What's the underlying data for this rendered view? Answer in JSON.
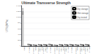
{
  "chart_data": {
    "type": "bar",
    "title": "Ultimate Transverse Strength",
    "ylabel": "UTS (MPa)",
    "categories": [
      "OBC",
      "PTOBC",
      "PTOBC+\nAgBz",
      "PTOBC+\nAgBz+\nBPO",
      "PTOBC+\nAgBz+\nP-TIDE",
      "UTOBC",
      "UTOBC+\nAgBz",
      "UTOBC+\nAgBz+\nBPO",
      "UTOBC+\nAgBz+\nP-TIDE",
      "CTOBC",
      "CTOBC+\nAgBz",
      "CTOBC+\nAgBz+\nBPO",
      "CTOBC+\nAgBz+\nP-TIDE"
    ],
    "series": [
      {
        "name": "Dry storage",
        "color": "#d9d9d9",
        "values": [
          1200,
          65,
          45,
          55,
          55,
          65,
          38,
          55,
          55,
          58,
          50,
          58,
          58
        ],
        "errors": [
          100,
          8,
          5,
          6,
          6,
          8,
          4,
          6,
          6,
          7,
          5,
          7,
          7
        ]
      },
      {
        "name": "Wet storage",
        "color": "#bfbfbf",
        "values": [
          0,
          58,
          40,
          50,
          50,
          58,
          34,
          50,
          50,
          52,
          45,
          52,
          52
        ],
        "errors": [
          0,
          7,
          4,
          5,
          5,
          7,
          3,
          5,
          5,
          6,
          4,
          6,
          6
        ]
      },
      {
        "name": "Dry tested",
        "color": "#404040",
        "values": [
          0,
          48,
          35,
          45,
          45,
          50,
          28,
          45,
          45,
          46,
          38,
          46,
          46
        ],
        "errors": [
          0,
          6,
          4,
          5,
          5,
          6,
          3,
          5,
          5,
          5,
          4,
          5,
          5
        ]
      }
    ],
    "ylim": [
      0,
      1400
    ],
    "yticks": [
      0,
      200,
      400,
      600,
      800,
      1000,
      1200,
      1400
    ],
    "grid": true,
    "legend": "upper right"
  }
}
